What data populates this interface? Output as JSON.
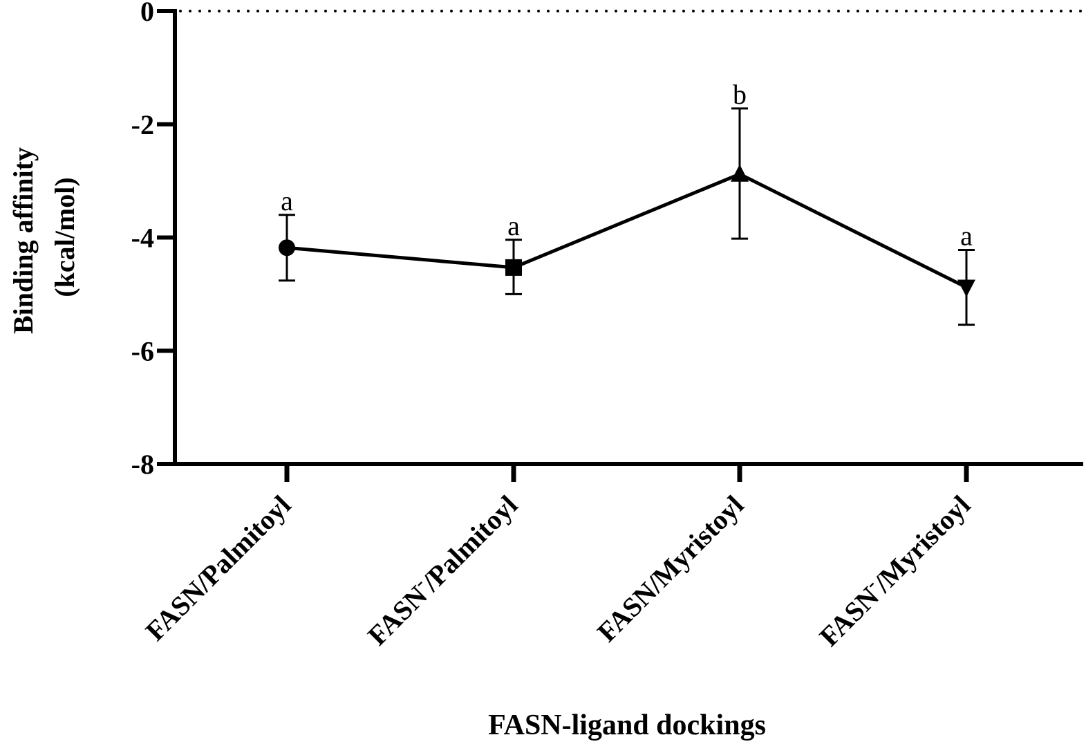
{
  "chart_data": {
    "type": "line",
    "xlabel": "FASN-ligand dockings",
    "ylabel_line1": "Binding affinity",
    "ylabel_line2": "(kcal/mol)",
    "ylim": [
      -8,
      0
    ],
    "yticks": [
      0,
      -2,
      -4,
      -6,
      -8
    ],
    "reference_line": {
      "y": 0,
      "style": "dotted"
    },
    "categories": [
      {
        "prefix": "FASN",
        "superscript": "",
        "suffix": "/Palmitoyl"
      },
      {
        "prefix": "FASN",
        "superscript": "-",
        "suffix": "/Palmitoyl"
      },
      {
        "prefix": "FASN",
        "superscript": "",
        "suffix": "/Myristoyl"
      },
      {
        "prefix": "FASN",
        "superscript": "-",
        "suffix": "/Myristoyl"
      }
    ],
    "series": [
      {
        "values": [
          -4.18,
          -4.53,
          -2.88,
          -4.88
        ],
        "error_upper": [
          -3.6,
          -4.04,
          -1.72,
          -4.22
        ],
        "error_lower": [
          -4.76,
          -5.0,
          -4.02,
          -5.54
        ],
        "markers": [
          "circle",
          "square",
          "triangle-up",
          "triangle-down"
        ],
        "significance": [
          "a",
          "a",
          "b",
          "a"
        ],
        "color": "#000000"
      }
    ]
  }
}
